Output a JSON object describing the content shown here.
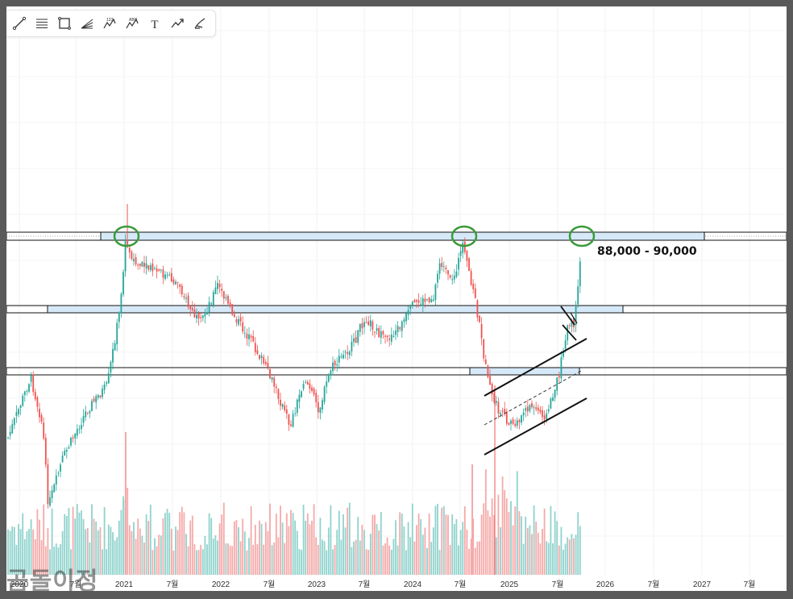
{
  "toolbar": {
    "tools": [
      {
        "name": "trend-line-icon"
      },
      {
        "name": "parallel-lines-icon"
      },
      {
        "name": "rectangle-icon"
      },
      {
        "name": "fib-fan-icon"
      },
      {
        "name": "wave-123-icon"
      },
      {
        "name": "wave-abc-icon"
      },
      {
        "name": "text-tool-icon"
      },
      {
        "name": "forecast-icon"
      },
      {
        "name": "brush-icon"
      }
    ],
    "text_tool_glyph": "T",
    "wave_123_label": "123",
    "wave_abc_label": "ABC"
  },
  "watermark": "곰돌이정",
  "chart_data": {
    "type": "candlestick",
    "x_ticks": [
      "2020",
      "7월",
      "2021",
      "7월",
      "2022",
      "7월",
      "2023",
      "7월",
      "2024",
      "7월",
      "2025",
      "7월",
      "2026",
      "7월",
      "2027",
      "7월"
    ],
    "annotations": {
      "target_range_label": "88,000 - 90,000"
    },
    "colors": {
      "up": "#26a69a",
      "down": "#ef5350",
      "volume_up": "#8fd3cc",
      "volume_down": "#f5a9a9",
      "zone_fill": "#d6e9f8",
      "circle": "#3a9a3a"
    }
  }
}
